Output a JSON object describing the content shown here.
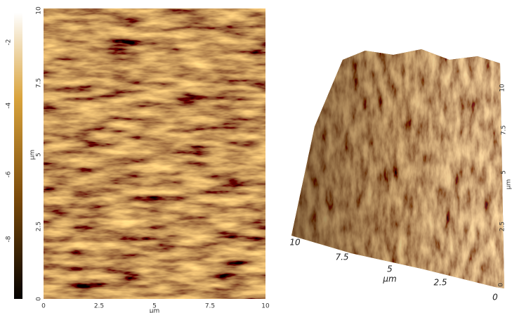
{
  "colorbar": {
    "ticks": [
      "-2",
      "-4",
      "-6",
      "-8"
    ]
  },
  "left_panel": {
    "y_ticks": [
      "10",
      "7.5",
      "5",
      "2.5",
      "0"
    ],
    "y_unit": "µm",
    "x_ticks": [
      "0",
      "2.5",
      "5",
      "7.5",
      "10"
    ],
    "x_unit": "µm"
  },
  "right_panel": {
    "front_ticks": [
      "10",
      "7.5",
      "5",
      "2.5",
      "0"
    ],
    "front_unit": "µm",
    "side_ticks": [
      "0",
      "2.5",
      "5",
      "7.5",
      "10"
    ],
    "side_unit": "µm"
  }
}
